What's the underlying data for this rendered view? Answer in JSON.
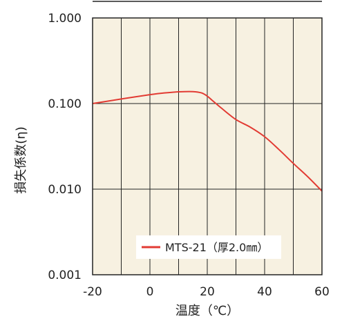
{
  "chart_data": {
    "type": "line",
    "title": "",
    "xlabel": "温度（℃）",
    "ylabel": "損失係数(η)",
    "xlim": [
      -20,
      60
    ],
    "ylim": [
      0.001,
      1.0
    ],
    "yscale": "log",
    "grid": true,
    "legend_position": "bottom-center",
    "x_ticks": [
      -20,
      0,
      20,
      40,
      60
    ],
    "x_tick_labels": [
      "-20",
      "0",
      "20",
      "40",
      "60"
    ],
    "y_ticks": [
      0.001,
      0.01,
      0.1,
      1.0
    ],
    "y_tick_labels": [
      "0.001",
      "0.010",
      "0.100",
      "1.000"
    ],
    "colors": {
      "plot_background": "#f7f1e1",
      "grid": "#222222",
      "series": "#e23b33"
    },
    "series": [
      {
        "name": "MTS-21（厚2.0㎜）",
        "x": [
          -20,
          -10,
          0,
          5,
          10,
          15,
          18,
          20,
          22,
          25,
          30,
          35,
          40,
          45,
          50,
          55,
          60
        ],
        "y": [
          0.1,
          0.113,
          0.127,
          0.133,
          0.137,
          0.138,
          0.133,
          0.122,
          0.107,
          0.088,
          0.065,
          0.053,
          0.041,
          0.029,
          0.02,
          0.014,
          0.0095
        ]
      }
    ]
  }
}
